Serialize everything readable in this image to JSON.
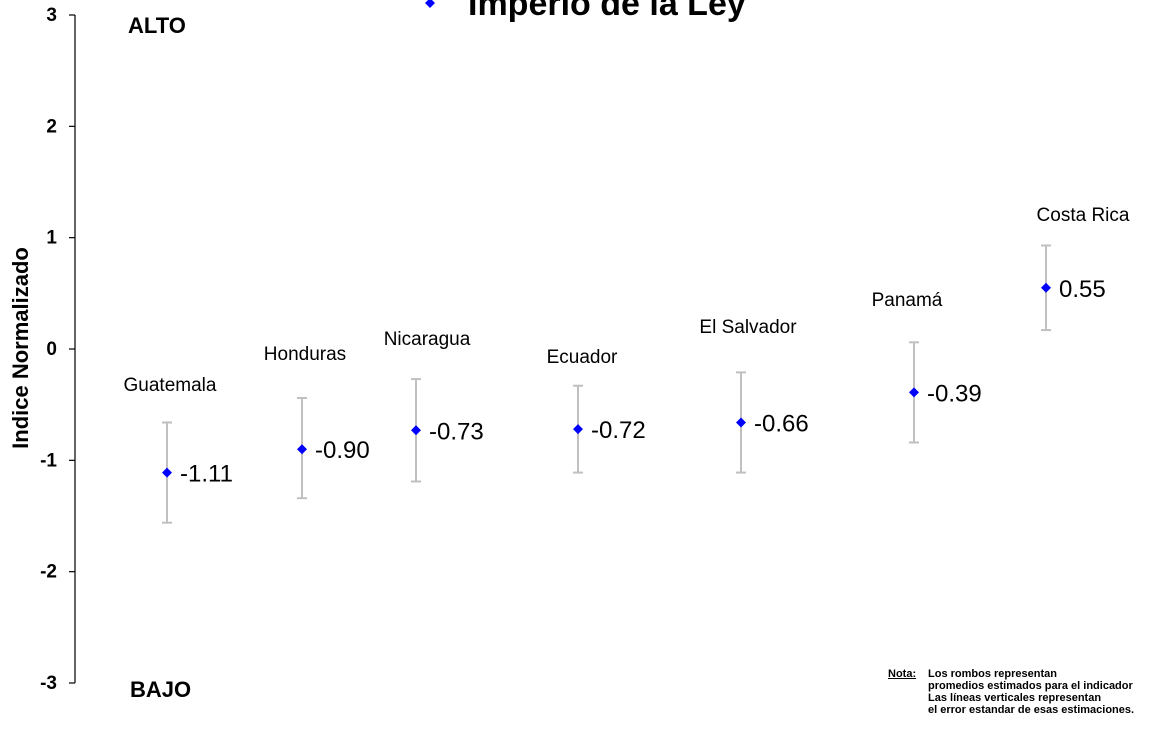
{
  "chart_data": {
    "type": "scatter",
    "title": "Imperio de la Ley",
    "ylabel": "Indice Normalizado",
    "xlabel": "",
    "ylim": [
      -3,
      3
    ],
    "yticks": [
      "3",
      "2",
      "1",
      "0",
      "-1",
      "-2",
      "-3"
    ],
    "high_label": "ALTO",
    "low_label": "BAJO",
    "categories": [
      "Guatemala",
      "Honduras",
      "Nicaragua",
      "Ecuador",
      "El Salvador",
      "Panamá",
      "Costa Rica"
    ],
    "values": [
      -1.11,
      -0.9,
      -0.73,
      -0.72,
      -0.66,
      -0.39,
      0.55
    ],
    "value_labels": [
      "-1.11",
      "-0.90",
      "-0.73",
      "-0.72",
      "-0.66",
      "-0.39",
      "0.55"
    ],
    "error_low": [
      -1.56,
      -1.34,
      -1.19,
      -1.11,
      -1.11,
      -0.84,
      0.17
    ],
    "error_high": [
      -0.66,
      -0.44,
      -0.27,
      -0.33,
      -0.21,
      0.06,
      0.93
    ],
    "marker_color": "#0000ff",
    "errorbar_color": "#c0c0c0",
    "legend": {
      "marker": "diamond",
      "label": "Imperio de la Ley"
    }
  },
  "note": {
    "head": "Nota:",
    "lines": [
      "Los rombos representan",
      "promedios estimados para el indicador",
      "Las líneas verticales representan",
      "el error estandar de esas estimaciones."
    ]
  }
}
